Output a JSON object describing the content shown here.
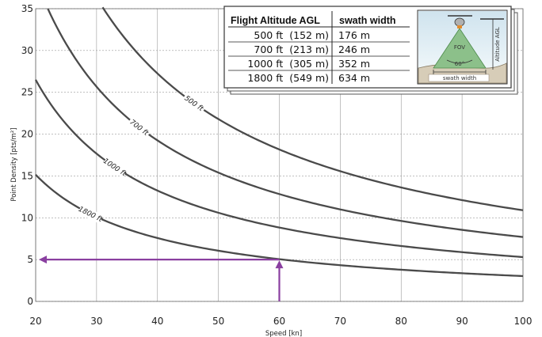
{
  "chart_data": {
    "type": "line",
    "xlabel": "Speed [kn]",
    "ylabel": "Point Density [pts/m²]",
    "xlim": [
      20,
      100
    ],
    "ylim": [
      0,
      35
    ],
    "xticks": [
      "20",
      "30",
      "40",
      "50",
      "60",
      "70",
      "80",
      "90",
      "100"
    ],
    "yticks": [
      "0",
      "5",
      "10",
      "15",
      "20",
      "25",
      "30",
      "35"
    ],
    "grid": true,
    "series": [
      {
        "name": "500 ft",
        "k": 1090,
        "xmin": 31
      },
      {
        "name": "700 ft",
        "k": 770,
        "xmin": 22
      },
      {
        "name": "1000 ft",
        "k": 530,
        "xmin": 20
      },
      {
        "name": "1800 ft",
        "k": 303,
        "xmin": 20
      }
    ],
    "annotation": {
      "speed": 60,
      "density": 5,
      "color": "#8a3fa0"
    },
    "table": {
      "headers": [
        "Flight Altitude AGL",
        "swath width"
      ],
      "rows": [
        [
          "500 ft  (152 m)",
          "176 m"
        ],
        [
          "700 ft  (213 m)",
          "246 m"
        ],
        [
          "1000 ft  (305 m)",
          "352 m"
        ],
        [
          "1800 ft  (549 m)",
          "634 m"
        ]
      ]
    },
    "diagram": {
      "fov_label": "FOV",
      "angle_label": "60°",
      "altitude_label": "Altitude AGL",
      "swath_label": "swath width"
    }
  }
}
